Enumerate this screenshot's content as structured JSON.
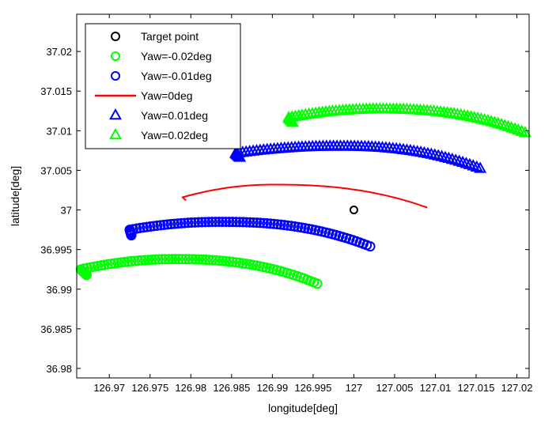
{
  "chart_data": {
    "type": "scatter",
    "xlabel": "longitude[deg]",
    "ylabel": "latitude[deg]",
    "xlim": [
      126.966,
      127.0215
    ],
    "ylim": [
      36.9788,
      37.0247
    ],
    "xticks": [
      126.97,
      126.975,
      126.98,
      126.985,
      126.99,
      126.995,
      127,
      127.005,
      127.01,
      127.015,
      127.02
    ],
    "xtick_labels": [
      "126.97",
      "126.975",
      "126.98",
      "126.985",
      "126.99",
      "126.995",
      "127",
      "127.005",
      "127.01",
      "127.015",
      "127.02"
    ],
    "yticks": [
      36.98,
      36.985,
      36.99,
      36.995,
      37,
      37.005,
      37.01,
      37.015,
      37.02
    ],
    "ytick_labels": [
      "36.98",
      "36.985",
      "36.99",
      "36.995",
      "37",
      "37.005",
      "37.01",
      "37.015",
      "37.02"
    ],
    "grid": false,
    "legend_position": "top-left",
    "series": [
      {
        "name": "Target point",
        "marker": "circle",
        "color": "#000000",
        "x": [
          127.0
        ],
        "y": [
          37.0
        ]
      },
      {
        "name": "Yaw=-0.02deg",
        "marker": "circle",
        "color": "#00ff00",
        "x_start": 126.9665,
        "x_peak": 126.978,
        "x_end": 126.9955,
        "y_start": 36.9925,
        "y_peak": 36.9938,
        "y_end": 36.9907,
        "hook_x": 126.9672,
        "hook_y": 36.9918
      },
      {
        "name": "Yaw=-0.01deg",
        "marker": "circle",
        "color": "#0000ff",
        "x_start": 126.9725,
        "x_peak": 126.9835,
        "x_end": 127.002,
        "y_start": 36.9975,
        "y_peak": 36.9985,
        "y_end": 36.9954,
        "hook_x": 126.9727,
        "hook_y": 36.9968
      },
      {
        "name": "Yaw=0deg",
        "marker": "line",
        "color": "#ff0000",
        "x_start": 126.979,
        "x_peak": 126.99,
        "x_end": 127.009,
        "y_start": 37.0016,
        "y_peak": 37.0032,
        "y_end": 37.0003,
        "hook_x": 126.9794,
        "hook_y": 37.0012
      },
      {
        "name": "Yaw=0.01deg",
        "marker": "triangle",
        "color": "#0000ff",
        "x_start": 126.9855,
        "x_peak": 126.998,
        "x_end": 127.0155,
        "y_start": 37.0071,
        "y_peak": 37.008,
        "y_end": 37.0052,
        "hook_x": 126.986,
        "hook_y": 37.0066
      },
      {
        "name": "Yaw=0.02deg",
        "marker": "triangle",
        "color": "#00ff00",
        "x_start": 126.992,
        "x_peak": 127.003,
        "x_end": 127.021,
        "y_start": 37.0116,
        "y_peak": 37.0127,
        "y_end": 37.0097,
        "hook_x": 126.9925,
        "hook_y": 37.011
      }
    ]
  }
}
